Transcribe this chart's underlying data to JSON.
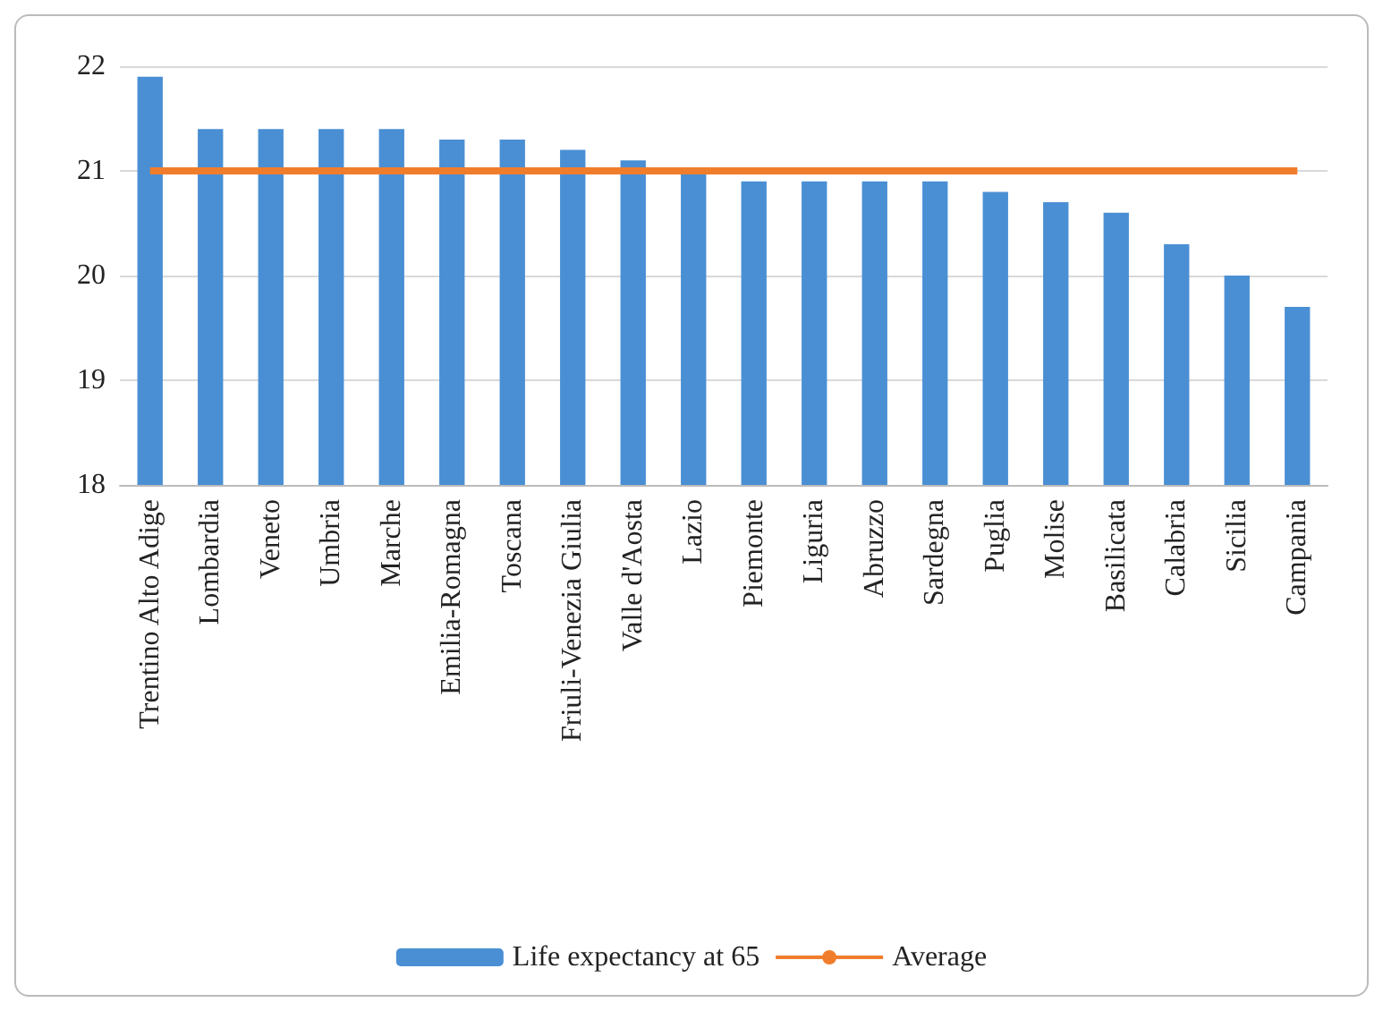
{
  "chart_data": {
    "type": "bar",
    "categories": [
      "Trentino Alto Adige",
      "Lombardia",
      "Veneto",
      "Umbria",
      "Marche",
      "Emilia-Romagna",
      "Toscana",
      "Friuli-Venezia Giulia",
      "Valle d'Aosta",
      "Lazio",
      "Piemonte",
      "Liguria",
      "Abruzzo",
      "Sardegna",
      "Puglia",
      "Molise",
      "Basilicata",
      "Calabria",
      "Sicilia",
      "Campania"
    ],
    "series": [
      {
        "name": "Life expectancy at 65",
        "color": "#4a8fd4",
        "values": [
          21.9,
          21.4,
          21.4,
          21.4,
          21.4,
          21.3,
          21.3,
          21.2,
          21.1,
          21.0,
          20.9,
          20.9,
          20.9,
          20.9,
          20.8,
          20.7,
          20.6,
          20.3,
          20.0,
          19.7
        ]
      },
      {
        "name": "Average",
        "type": "line",
        "color": "#f07d2c",
        "values": [
          21,
          21,
          21,
          21,
          21,
          21,
          21,
          21,
          21,
          21,
          21,
          21,
          21,
          21,
          21,
          21,
          21,
          21,
          21,
          21
        ]
      }
    ],
    "ylim": [
      18,
      22
    ],
    "yticks": [
      18,
      19,
      20,
      21,
      22
    ],
    "grid": "y",
    "legend": "bottom",
    "marker": "none"
  }
}
